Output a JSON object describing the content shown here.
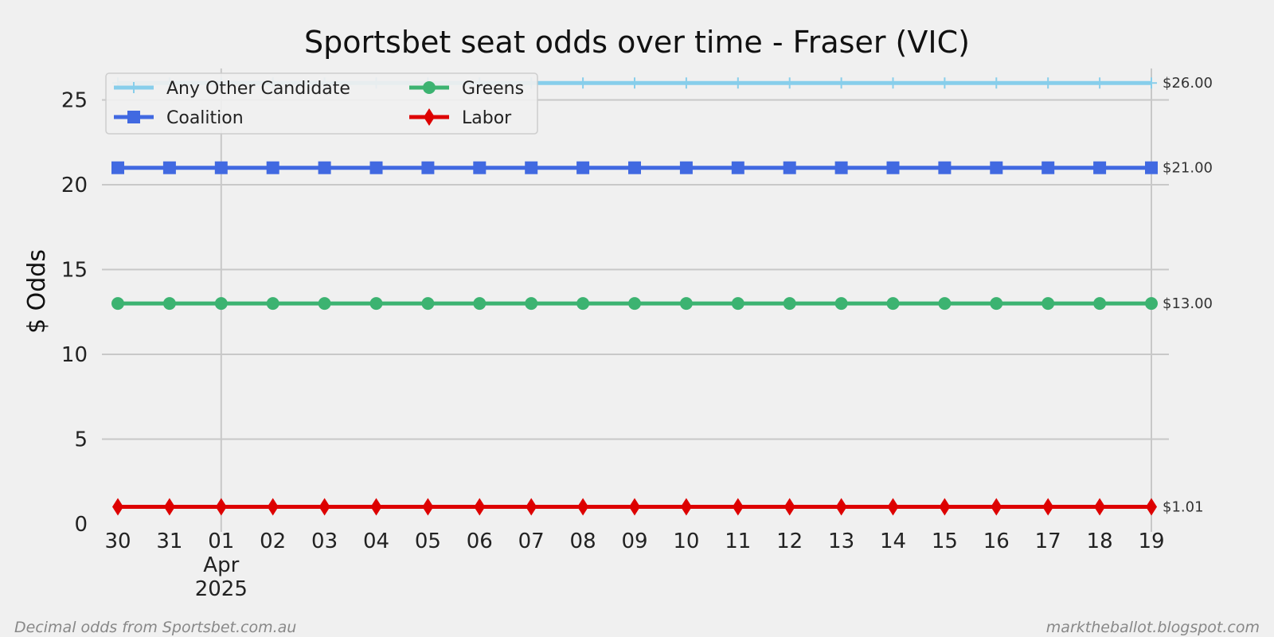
{
  "chart_data": {
    "type": "line",
    "title": "Sportsbet seat odds over time - Fraser (VIC)",
    "ylabel": "$ Odds",
    "xlabel": "",
    "ylim": [
      0,
      27
    ],
    "yticks": [
      0,
      5,
      10,
      15,
      20,
      25
    ],
    "x": [
      "2025-03-30",
      "2025-03-31",
      "2025-04-01",
      "2025-04-02",
      "2025-04-03",
      "2025-04-04",
      "2025-04-05",
      "2025-04-06",
      "2025-04-07",
      "2025-04-08",
      "2025-04-09",
      "2025-04-10",
      "2025-04-11",
      "2025-04-12",
      "2025-04-13",
      "2025-04-14",
      "2025-04-15",
      "2025-04-16",
      "2025-04-17",
      "2025-04-18",
      "2025-04-19"
    ],
    "x_tick_labels": [
      "30",
      "31",
      "01",
      "02",
      "03",
      "04",
      "05",
      "06",
      "07",
      "08",
      "09",
      "10",
      "11",
      "12",
      "13",
      "14",
      "15",
      "16",
      "17",
      "18",
      "19"
    ],
    "x_month_label": [
      "Apr",
      "2025"
    ],
    "grid": true,
    "legend_position": "top-left",
    "series": [
      {
        "name": "Any Other Candidate",
        "color": "#87ceeb",
        "marker": "plus",
        "values": [
          26,
          26,
          26,
          26,
          26,
          26,
          26,
          26,
          26,
          26,
          26,
          26,
          26,
          26,
          26,
          26,
          26,
          26,
          26,
          26,
          26
        ],
        "end_label": "$26.00"
      },
      {
        "name": "Coalition",
        "color": "#4169e1",
        "marker": "square",
        "values": [
          21,
          21,
          21,
          21,
          21,
          21,
          21,
          21,
          21,
          21,
          21,
          21,
          21,
          21,
          21,
          21,
          21,
          21,
          21,
          21,
          21
        ],
        "end_label": "$21.00"
      },
      {
        "name": "Greens",
        "color": "#3cb371",
        "marker": "circle",
        "values": [
          13,
          13,
          13,
          13,
          13,
          13,
          13,
          13,
          13,
          13,
          13,
          13,
          13,
          13,
          13,
          13,
          13,
          13,
          13,
          13,
          13
        ],
        "end_label": "$13.00"
      },
      {
        "name": "Labor",
        "color": "#dd0000",
        "marker": "diamond",
        "values": [
          1.01,
          1.01,
          1.01,
          1.01,
          1.01,
          1.01,
          1.01,
          1.01,
          1.01,
          1.01,
          1.01,
          1.01,
          1.01,
          1.01,
          1.01,
          1.01,
          1.01,
          1.01,
          1.01,
          1.01,
          1.01
        ],
        "end_label": "$1.01"
      }
    ]
  },
  "footer": {
    "left": "Decimal odds from Sportsbet.com.au",
    "right": "marktheballot.blogspot.com"
  }
}
